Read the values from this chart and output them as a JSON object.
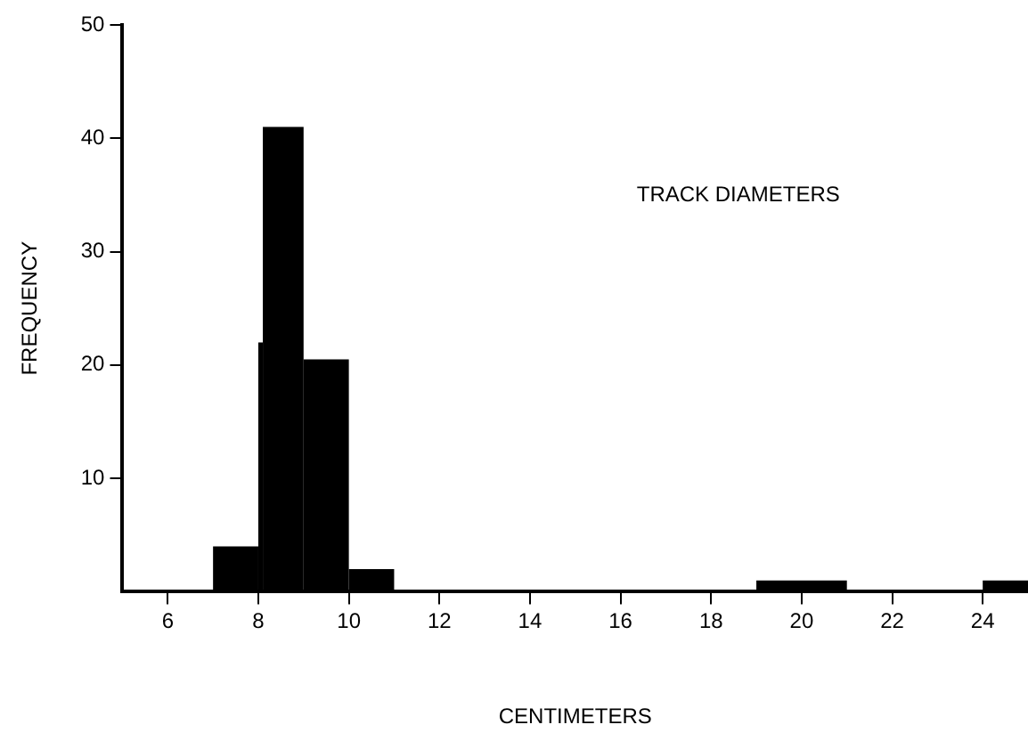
{
  "chart_data": {
    "type": "histogram",
    "xlabel": "CENTIMETERS",
    "ylabel": "FREQUENCY",
    "annotations": [
      "TRACK DIAMETERS"
    ],
    "bins": [
      7,
      8,
      8.1,
      9,
      10,
      11,
      19,
      21,
      24,
      25
    ],
    "values": [
      4,
      22,
      41,
      20.5,
      2,
      0,
      1,
      0,
      1
    ],
    "color": "#000000",
    "xlim": [
      5,
      25
    ],
    "xticks": [
      6,
      8,
      10,
      12,
      14,
      16,
      18,
      20,
      22,
      24
    ],
    "ylim": [
      0,
      50
    ],
    "yticks": [
      10,
      20,
      30,
      40,
      50
    ],
    "grid": false,
    "legend": false
  }
}
